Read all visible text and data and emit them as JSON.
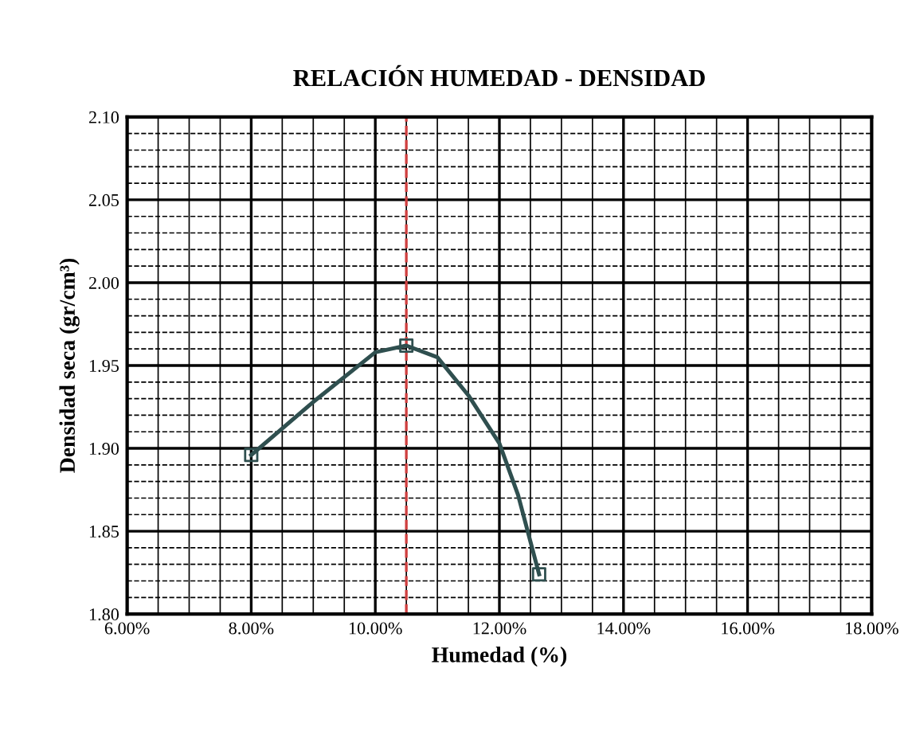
{
  "chart_data": {
    "type": "line",
    "title": "RELACIÓN HUMEDAD - DENSIDAD",
    "xlabel": "Humedad (%)",
    "ylabel": "Densidad seca (gr/cm³)",
    "xlim": [
      6,
      18
    ],
    "xticks": [
      {
        "value": 6,
        "label": "6.00%"
      },
      {
        "value": 8,
        "label": "8.00%"
      },
      {
        "value": 10,
        "label": "10.00%"
      },
      {
        "value": 12,
        "label": "12.00%"
      },
      {
        "value": 14,
        "label": "14.00%"
      },
      {
        "value": 16,
        "label": "16.00%"
      },
      {
        "value": 18,
        "label": "18.00%"
      }
    ],
    "ylim": [
      1.8,
      2.1
    ],
    "yticks": [
      {
        "value": 1.8,
        "label": "1.80"
      },
      {
        "value": 1.85,
        "label": "1.85"
      },
      {
        "value": 1.9,
        "label": "1.90"
      },
      {
        "value": 1.95,
        "label": "1.95"
      },
      {
        "value": 2.0,
        "label": "2.00"
      },
      {
        "value": 2.05,
        "label": "2.05"
      },
      {
        "value": 2.1,
        "label": "2.10"
      }
    ],
    "grid": true,
    "series": [
      {
        "color": "#2f4f4f",
        "marker": "none",
        "x": [
          8.0,
          9.0,
          10.0,
          10.5,
          11.0,
          11.5,
          12.0,
          12.3,
          12.64
        ],
        "values": [
          1.896,
          1.928,
          1.958,
          1.962,
          1.955,
          1.932,
          1.903,
          1.872,
          1.824
        ]
      },
      {
        "type": "scatter",
        "color": "#2f4f4f",
        "marker": "square",
        "x": [
          8.0,
          10.5,
          12.64
        ],
        "values": [
          1.896,
          1.962,
          1.824
        ]
      }
    ],
    "ref_lines": [
      {
        "axis": "x",
        "value": 10.5,
        "color": "#d04040",
        "line_style": "dashed"
      }
    ]
  }
}
